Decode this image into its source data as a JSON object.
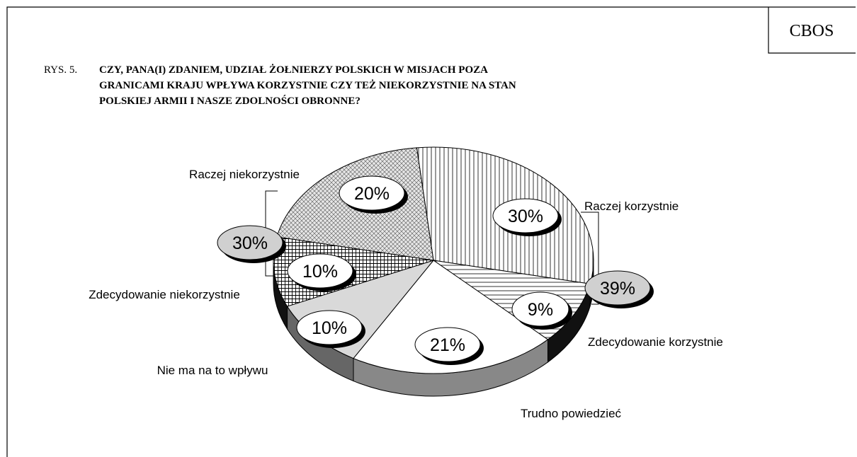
{
  "source": "CBOS",
  "figure_label": "RYS. 5.",
  "chart_data": {
    "type": "pie",
    "title_lines": [
      "CZY, PANA(I) ZDANIEM, UDZIAŁ ŻOŁNIERZY POLSKICH W MISJACH POZA",
      "GRANICAMI KRAJU WPŁYWA KORZYSTNIE CZY TEŻ NIEKORZYSTNIE NA STAN",
      "POLSKIEJ ARMII I NASZE ZDOLNOŚCI OBRONNE?"
    ],
    "categories": [
      "Raczej korzystnie",
      "Zdecydowanie korzystnie",
      "Trudno powiedzieć",
      "Nie ma na to wpływu",
      "Zdecydowanie niekorzystnie",
      "Raczej niekorzystnie"
    ],
    "values": [
      30,
      9,
      21,
      10,
      10,
      20
    ],
    "value_labels": [
      "30%",
      "9%",
      "21%",
      "10%",
      "10%",
      "20%"
    ],
    "colors": [
      "#ffffff",
      "#ffffff",
      "#ffffff",
      "#d9d9d9",
      "#ffffff",
      "#e6e6e6"
    ],
    "group_totals": [
      39,
      30
    ],
    "group_value_labels": [
      "39%",
      "30%"
    ]
  }
}
